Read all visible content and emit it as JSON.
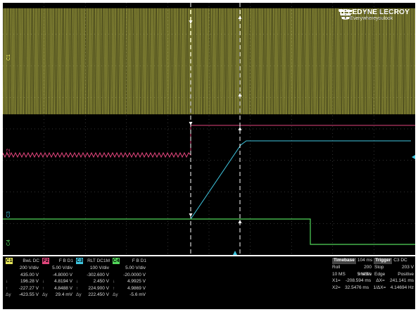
{
  "brand": {
    "name": "TELEDYNE LECROY",
    "tagline": "Everywhereyoulook"
  },
  "colors": {
    "c1": "#e8e85a",
    "c2": "#e0457b",
    "c3": "#3fc6e0",
    "c4": "#52d65a",
    "grid": "#666666"
  },
  "waveform_labels": {
    "c1": "C1",
    "c2": "C2",
    "c3": "C3",
    "c4": "C4"
  },
  "channels": [
    {
      "id": "C1",
      "config": "BwL DC",
      "vdiv": "200 V/div",
      "offset": "435.00 V",
      "v1": "196.28 V",
      "v2": "-227.27 V",
      "dv": "-423.55 V"
    },
    {
      "id": "F2",
      "config": "F B D1",
      "vdiv": "5.00 V/div",
      "offset": "-4.8000 V",
      "v1": "4.8194 V",
      "v2": "4.8488 V",
      "dv": "29.4 mV"
    },
    {
      "id": "C3",
      "config": "RLT DC1M",
      "vdiv": "100 V/div",
      "offset": "-302.600 V",
      "v1": "2.450 V",
      "v2": "224.900 V",
      "dv": "222.450 V"
    },
    {
      "id": "C4",
      "config": "F B D1",
      "vdiv": "5.00 V/div",
      "offset": "-20.0000 V",
      "v1": "4.9925 V",
      "v2": "4.9869 V",
      "dv": "-5.6 mV"
    }
  ],
  "row_labels": {
    "v1": "↓",
    "v2": "↑",
    "dv": "Δy"
  },
  "timebase": {
    "label": "Timebase",
    "delay": "104 ms",
    "trigger_label": "Trigger",
    "trigger_ch": "C3 DC",
    "mode": "Roll",
    "tdiv": "200 ms/div",
    "trig_mode": "Stop",
    "trig_level": "203 V",
    "samples": "10 MS",
    "rate": "5 MS/s",
    "trig_type": "Edge",
    "slope": "Positive",
    "x1_label": "X1=",
    "x1": "-208.594 ms",
    "dx_label": "ΔX=",
    "dx": "241.141 ms",
    "x2_label": "X2=",
    "x2": "32.5476 ms",
    "inv_label": "1/ΔX=",
    "inv": "4.14694 Hz"
  }
}
